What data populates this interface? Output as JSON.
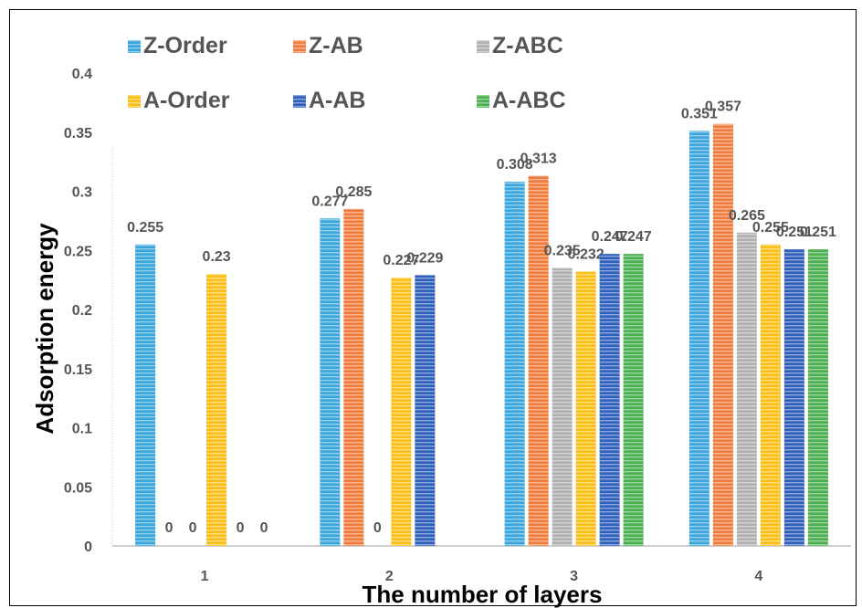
{
  "chart_data": {
    "type": "bar",
    "title": "",
    "xlabel": "The number of layers",
    "ylabel": "Adsorption energy",
    "categories": [
      "1",
      "2",
      "3",
      "4"
    ],
    "ylim": [
      0,
      0.4
    ],
    "yticks": [
      "0",
      "0.05",
      "0.1",
      "0.15",
      "0.2",
      "0.25",
      "0.3",
      "0.35",
      "0.4"
    ],
    "legend_position": "top-left",
    "grid": false,
    "series": [
      {
        "name": "Z-Order",
        "color": "#3aa6dc",
        "values": [
          0.255,
          0.277,
          0.308,
          0.351
        ],
        "labels": [
          "0.255",
          "0.277",
          "0.308",
          "0.351"
        ]
      },
      {
        "name": "Z-AB",
        "color": "#f07b3c",
        "values": [
          0,
          0.285,
          0.313,
          0.357
        ],
        "labels": [
          "0",
          "0.285",
          "0.313",
          "0.357"
        ]
      },
      {
        "name": "Z-ABC",
        "color": "#b0b0b0",
        "values": [
          0,
          0,
          0.235,
          0.265
        ],
        "labels": [
          "0",
          "0",
          "0.235",
          "0.265"
        ]
      },
      {
        "name": "A-Order",
        "color": "#f9bf16",
        "values": [
          0.23,
          0.227,
          0.232,
          0.255
        ],
        "labels": [
          "0.23",
          "0.227",
          "0.232",
          "0.255"
        ]
      },
      {
        "name": "A-AB",
        "color": "#2f5fba",
        "values": [
          0,
          0.229,
          0.247,
          0.251
        ],
        "labels": [
          "0",
          "0.229",
          "0.247",
          "0.251"
        ]
      },
      {
        "name": "A-ABC",
        "color": "#4caf50",
        "values": [
          0,
          0,
          0.247,
          0.251
        ],
        "labels": [
          "0",
          "",
          "0.247",
          "0.251"
        ]
      }
    ]
  }
}
